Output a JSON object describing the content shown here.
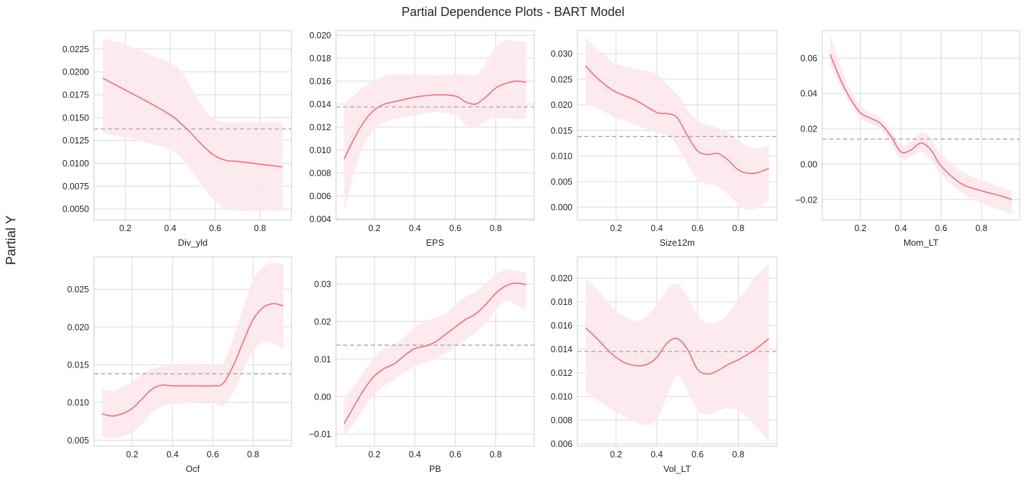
{
  "figure": {
    "title": "Partial Dependence Plots - BART Model",
    "ylabel": "Partial Y",
    "line_color": "#f06f82",
    "band_color": "#fde8ed",
    "ref_color": "#b0b0b0"
  },
  "chart_data": [
    {
      "type": "line",
      "xlabel": "Div_yld",
      "ref": 0.01375,
      "xlim": [
        0.06,
        0.94
      ],
      "ylim": [
        0.0038,
        0.0245
      ],
      "xticks": [
        0.2,
        0.4,
        0.6,
        0.8
      ],
      "xtick_labels": [
        "0.2",
        "0.4",
        "0.6",
        "0.8"
      ],
      "yticks": [
        0.005,
        0.0075,
        0.01,
        0.0125,
        0.015,
        0.0175,
        0.02,
        0.0225
      ],
      "ytick_labels": [
        "0.0050",
        "0.0075",
        "0.0100",
        "0.0125",
        "0.0150",
        "0.0175",
        "0.0200",
        "0.0225"
      ],
      "x": [
        0.1,
        0.2,
        0.3,
        0.4,
        0.45,
        0.5,
        0.55,
        0.6,
        0.65,
        0.7,
        0.8,
        0.9
      ],
      "y": [
        0.0193,
        0.018,
        0.0167,
        0.0153,
        0.0143,
        0.0131,
        0.0118,
        0.0108,
        0.0103,
        0.0102,
        0.0099,
        0.0096
      ],
      "lower": [
        0.0133,
        0.0128,
        0.0122,
        0.0115,
        0.0105,
        0.009,
        0.0073,
        0.0058,
        0.005,
        0.0048,
        0.0048,
        0.0048
      ],
      "upper": [
        0.0236,
        0.023,
        0.022,
        0.021,
        0.02,
        0.018,
        0.016,
        0.0148,
        0.0145,
        0.0145,
        0.0145,
        0.0145
      ]
    },
    {
      "type": "line",
      "xlabel": "EPS",
      "ref": 0.01375,
      "xlim": [
        0.01,
        0.99
      ],
      "ylim": [
        0.0039,
        0.0204
      ],
      "xticks": [
        0.2,
        0.4,
        0.6,
        0.8
      ],
      "xtick_labels": [
        "0.2",
        "0.4",
        "0.6",
        "0.8"
      ],
      "yticks": [
        0.004,
        0.006,
        0.008,
        0.01,
        0.012,
        0.014,
        0.016,
        0.018,
        0.02
      ],
      "ytick_labels": [
        "0.004",
        "0.006",
        "0.008",
        "0.010",
        "0.012",
        "0.014",
        "0.016",
        "0.018",
        "0.020"
      ],
      "x": [
        0.05,
        0.1,
        0.15,
        0.2,
        0.25,
        0.3,
        0.4,
        0.5,
        0.6,
        0.65,
        0.7,
        0.75,
        0.8,
        0.85,
        0.9,
        0.95
      ],
      "y": [
        0.0092,
        0.011,
        0.0125,
        0.0135,
        0.014,
        0.0142,
        0.0146,
        0.0148,
        0.0147,
        0.0142,
        0.014,
        0.0146,
        0.0154,
        0.0158,
        0.016,
        0.0159
      ],
      "lower": [
        0.0046,
        0.008,
        0.0105,
        0.0118,
        0.0124,
        0.0127,
        0.013,
        0.0133,
        0.013,
        0.0122,
        0.012,
        0.0125,
        0.0128,
        0.0127,
        0.0127,
        0.0127
      ],
      "upper": [
        0.014,
        0.0148,
        0.0155,
        0.016,
        0.0165,
        0.0166,
        0.0166,
        0.0165,
        0.0166,
        0.0166,
        0.0165,
        0.0175,
        0.019,
        0.0196,
        0.0195,
        0.0194
      ]
    },
    {
      "type": "line",
      "xlabel": "Size12m",
      "ref": 0.0138,
      "xlim": [
        0.01,
        0.99
      ],
      "ylim": [
        -0.0025,
        0.0345
      ],
      "xticks": [
        0.2,
        0.4,
        0.6,
        0.8
      ],
      "xtick_labels": [
        "0.2",
        "0.4",
        "0.6",
        "0.8"
      ],
      "yticks": [
        0.0,
        0.005,
        0.01,
        0.015,
        0.02,
        0.025,
        0.03
      ],
      "ytick_labels": [
        "0.000",
        "0.005",
        "0.010",
        "0.015",
        "0.020",
        "0.025",
        "0.030"
      ],
      "x": [
        0.05,
        0.1,
        0.15,
        0.2,
        0.3,
        0.4,
        0.45,
        0.5,
        0.55,
        0.6,
        0.65,
        0.7,
        0.75,
        0.8,
        0.85,
        0.9,
        0.95
      ],
      "y": [
        0.0276,
        0.0255,
        0.0238,
        0.0225,
        0.0208,
        0.0185,
        0.0183,
        0.0175,
        0.014,
        0.011,
        0.0103,
        0.0105,
        0.0092,
        0.0073,
        0.0066,
        0.0068,
        0.0076
      ],
      "lower": [
        0.02,
        0.0195,
        0.0185,
        0.0175,
        0.016,
        0.0145,
        0.014,
        0.012,
        0.0085,
        0.0055,
        0.0045,
        0.004,
        0.0025,
        0.0005,
        -0.0005,
        0.0,
        0.0015
      ],
      "upper": [
        0.0332,
        0.031,
        0.0295,
        0.028,
        0.027,
        0.026,
        0.024,
        0.022,
        0.019,
        0.017,
        0.016,
        0.0155,
        0.0145,
        0.013,
        0.0118,
        0.0115,
        0.012
      ]
    },
    {
      "type": "line",
      "xlabel": "Mom_LT",
      "ref": 0.0142,
      "xlim": [
        0.01,
        0.99
      ],
      "ylim": [
        -0.0315,
        0.0755
      ],
      "xticks": [
        0.2,
        0.4,
        0.6,
        0.8
      ],
      "xtick_labels": [
        "0.2",
        "0.4",
        "0.6",
        "0.8"
      ],
      "yticks": [
        -0.02,
        0.0,
        0.02,
        0.04,
        0.06
      ],
      "ytick_labels": [
        "−0.02",
        "0.00",
        "0.02",
        "0.04",
        "0.06"
      ],
      "x": [
        0.05,
        0.1,
        0.15,
        0.2,
        0.25,
        0.3,
        0.35,
        0.4,
        0.45,
        0.5,
        0.55,
        0.6,
        0.7,
        0.8,
        0.9,
        0.95
      ],
      "y": [
        0.062,
        0.048,
        0.037,
        0.029,
        0.026,
        0.023,
        0.016,
        0.007,
        0.008,
        0.012,
        0.008,
        -0.001,
        -0.011,
        -0.015,
        -0.018,
        -0.02
      ],
      "lower": [
        0.056,
        0.044,
        0.034,
        0.026,
        0.023,
        0.02,
        0.012,
        0.003,
        0.004,
        0.007,
        0.002,
        -0.006,
        -0.016,
        -0.022,
        -0.026,
        -0.0285
      ],
      "upper": [
        0.073,
        0.056,
        0.042,
        0.033,
        0.029,
        0.026,
        0.02,
        0.011,
        0.013,
        0.018,
        0.015,
        0.006,
        -0.004,
        -0.009,
        -0.013,
        -0.015
      ]
    },
    {
      "type": "line",
      "xlabel": "Ocf",
      "ref": 0.0138,
      "xlim": [
        0.01,
        0.99
      ],
      "ylim": [
        0.0042,
        0.0293
      ],
      "xticks": [
        0.2,
        0.4,
        0.6,
        0.8
      ],
      "xtick_labels": [
        "0.2",
        "0.4",
        "0.6",
        "0.8"
      ],
      "yticks": [
        0.005,
        0.01,
        0.015,
        0.02,
        0.025
      ],
      "ytick_labels": [
        "0.005",
        "0.010",
        "0.015",
        "0.020",
        "0.025"
      ],
      "x": [
        0.05,
        0.1,
        0.15,
        0.2,
        0.25,
        0.3,
        0.35,
        0.4,
        0.5,
        0.6,
        0.65,
        0.7,
        0.75,
        0.8,
        0.85,
        0.9,
        0.95
      ],
      "y": [
        0.0085,
        0.0082,
        0.0085,
        0.0092,
        0.0105,
        0.0118,
        0.0123,
        0.0122,
        0.0122,
        0.0122,
        0.0125,
        0.0148,
        0.018,
        0.021,
        0.0226,
        0.0231,
        0.0228
      ],
      "lower": [
        0.0055,
        0.0052,
        0.0055,
        0.006,
        0.0072,
        0.0087,
        0.0095,
        0.0098,
        0.01,
        0.01,
        0.0095,
        0.0112,
        0.0142,
        0.0168,
        0.018,
        0.0178,
        0.017
      ],
      "upper": [
        0.0118,
        0.0115,
        0.012,
        0.0128,
        0.0138,
        0.0145,
        0.0148,
        0.0149,
        0.015,
        0.0149,
        0.0152,
        0.0185,
        0.0225,
        0.0262,
        0.028,
        0.0285,
        0.0283
      ]
    },
    {
      "type": "line",
      "xlabel": "PB",
      "ref": 0.0137,
      "xlim": [
        0.01,
        0.99
      ],
      "ylim": [
        -0.0132,
        0.0372
      ],
      "xticks": [
        0.2,
        0.4,
        0.6,
        0.8
      ],
      "xtick_labels": [
        "0.2",
        "0.4",
        "0.6",
        "0.8"
      ],
      "yticks": [
        -0.01,
        0.0,
        0.01,
        0.02,
        0.03
      ],
      "ytick_labels": [
        "−0.01",
        "0.00",
        "0.01",
        "0.02",
        "0.03"
      ],
      "x": [
        0.05,
        0.1,
        0.15,
        0.2,
        0.25,
        0.3,
        0.35,
        0.4,
        0.45,
        0.5,
        0.55,
        0.6,
        0.65,
        0.7,
        0.75,
        0.8,
        0.85,
        0.9,
        0.95
      ],
      "y": [
        -0.0072,
        -0.0025,
        0.002,
        0.0055,
        0.0075,
        0.0088,
        0.011,
        0.0128,
        0.0134,
        0.0145,
        0.0165,
        0.0185,
        0.0205,
        0.022,
        0.0245,
        0.0275,
        0.0295,
        0.0302,
        0.0298
      ],
      "lower": [
        -0.0105,
        -0.007,
        -0.003,
        0.0005,
        0.003,
        0.0045,
        0.0065,
        0.008,
        0.009,
        0.01,
        0.0115,
        0.013,
        0.015,
        0.017,
        0.0195,
        0.023,
        0.0255,
        0.0245,
        0.023
      ],
      "upper": [
        -0.0005,
        0.003,
        0.007,
        0.0105,
        0.013,
        0.014,
        0.016,
        0.0185,
        0.02,
        0.021,
        0.022,
        0.0245,
        0.0265,
        0.028,
        0.03,
        0.0325,
        0.0338,
        0.0335,
        0.033
      ]
    },
    {
      "type": "line",
      "xlabel": "Vol_LT",
      "ref": 0.0138,
      "xlim": [
        0.01,
        0.99
      ],
      "ylim": [
        0.0058,
        0.0218
      ],
      "xticks": [
        0.2,
        0.4,
        0.6,
        0.8
      ],
      "xtick_labels": [
        "0.2",
        "0.4",
        "0.6",
        "0.8"
      ],
      "yticks": [
        0.006,
        0.008,
        0.01,
        0.012,
        0.014,
        0.016,
        0.018,
        0.02
      ],
      "ytick_labels": [
        "0.006",
        "0.008",
        "0.010",
        "0.012",
        "0.014",
        "0.016",
        "0.018",
        "0.020"
      ],
      "x": [
        0.05,
        0.1,
        0.15,
        0.2,
        0.25,
        0.3,
        0.35,
        0.4,
        0.45,
        0.5,
        0.55,
        0.6,
        0.65,
        0.7,
        0.75,
        0.8,
        0.85,
        0.9,
        0.95
      ],
      "y": [
        0.0158,
        0.015,
        0.0141,
        0.0133,
        0.0128,
        0.0126,
        0.0127,
        0.0133,
        0.0145,
        0.0149,
        0.014,
        0.0123,
        0.0119,
        0.0122,
        0.0127,
        0.0131,
        0.0136,
        0.0142,
        0.0149
      ],
      "lower": [
        0.0105,
        0.0098,
        0.0092,
        0.0087,
        0.0082,
        0.0078,
        0.0076,
        0.008,
        0.01,
        0.0118,
        0.0105,
        0.0088,
        0.0085,
        0.0088,
        0.009,
        0.0088,
        0.0082,
        0.0072,
        0.0062
      ],
      "upper": [
        0.02,
        0.0192,
        0.0182,
        0.0172,
        0.0167,
        0.0164,
        0.0168,
        0.0178,
        0.019,
        0.0195,
        0.0185,
        0.0168,
        0.0162,
        0.0163,
        0.017,
        0.0182,
        0.0193,
        0.0204,
        0.0212
      ]
    }
  ]
}
